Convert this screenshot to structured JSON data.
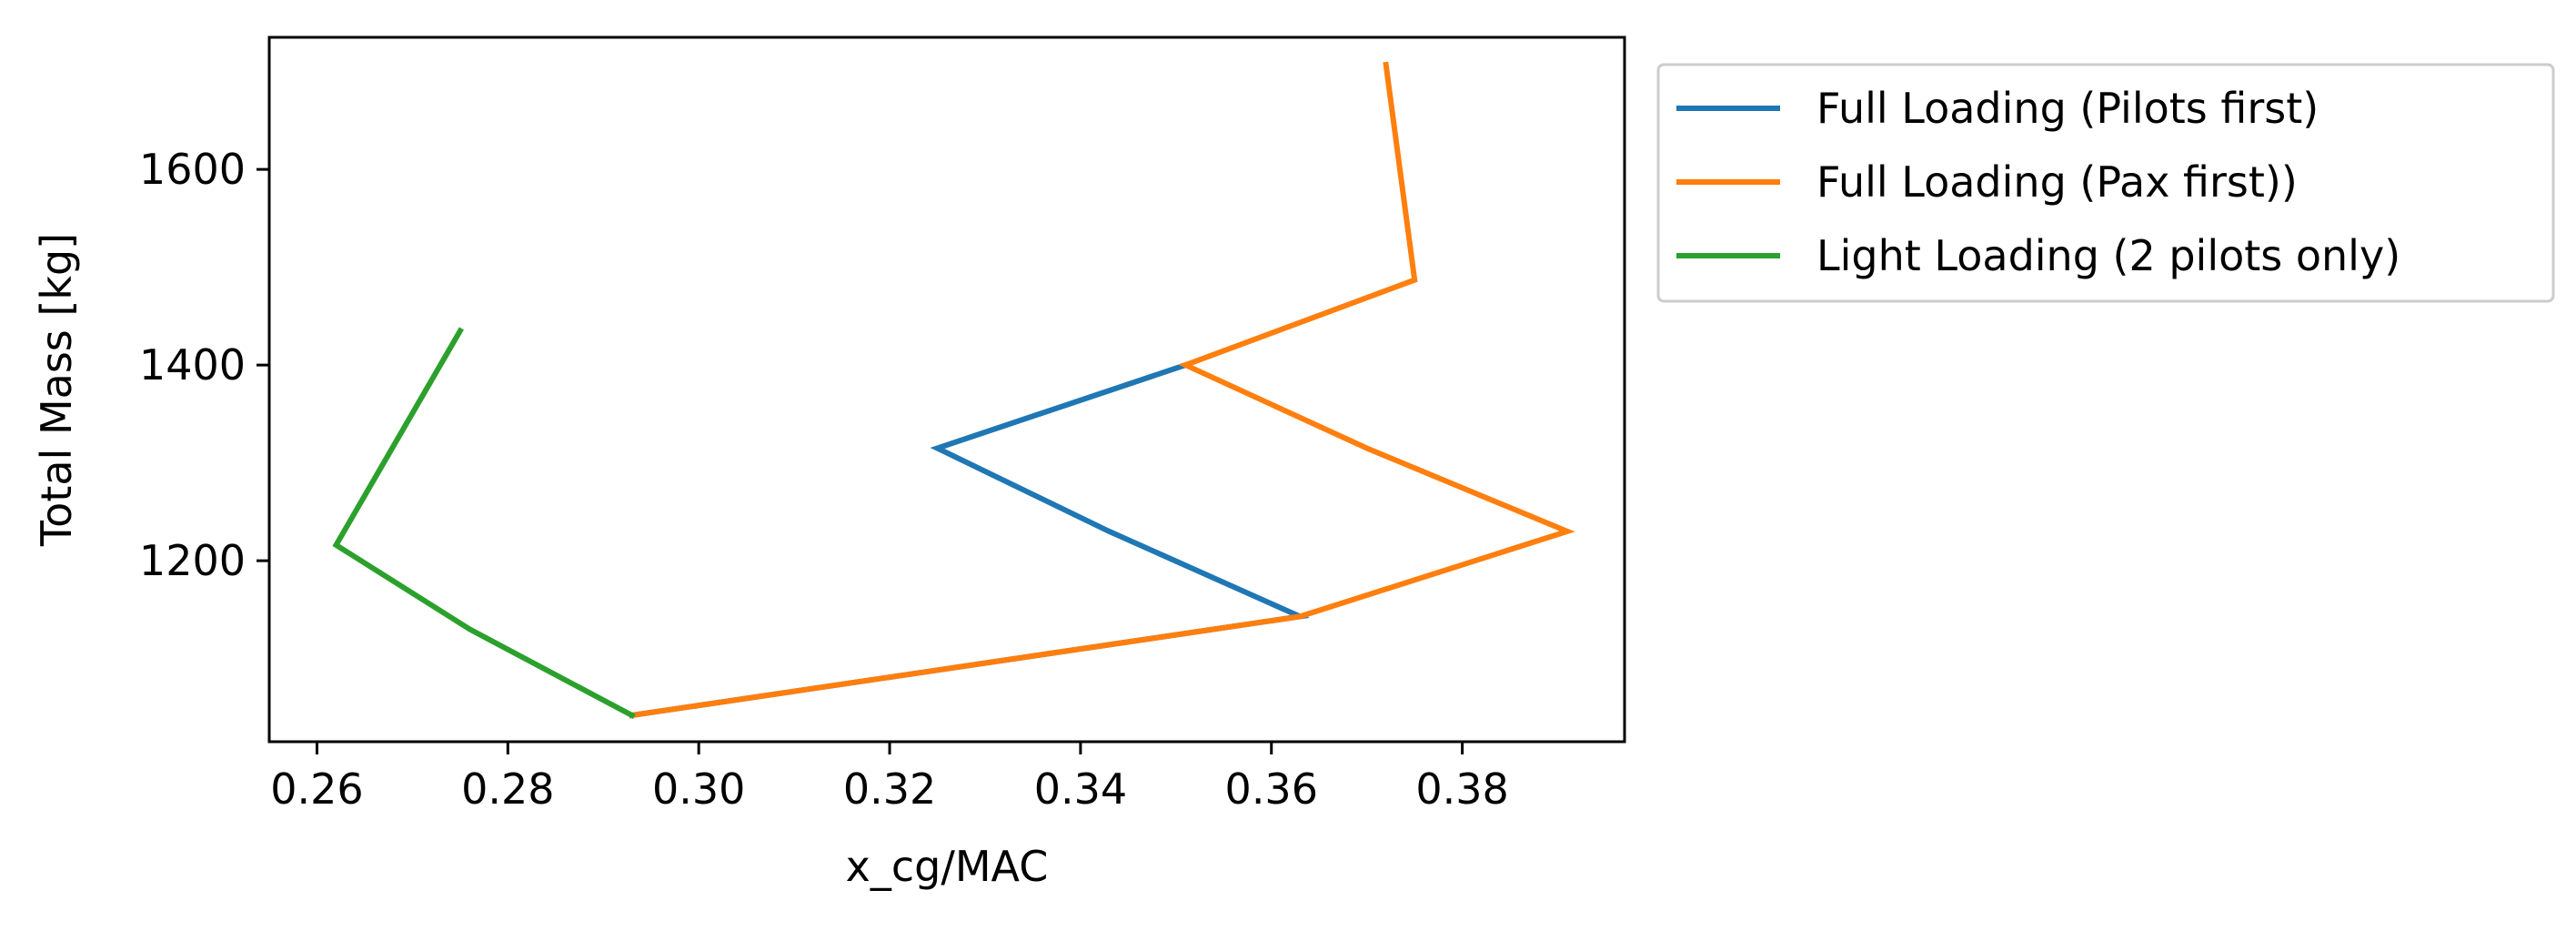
{
  "chart_data": {
    "type": "line",
    "xlabel": "x_cg/MAC",
    "ylabel": "Total Mass [kg]",
    "xlim": [
      0.255,
      0.397
    ],
    "ylim": [
      1015,
      1735
    ],
    "xticks": [
      0.26,
      0.28,
      0.3,
      0.32,
      0.34,
      0.36,
      0.38
    ],
    "xtick_labels": [
      "0.26",
      "0.28",
      "0.30",
      "0.32",
      "0.34",
      "0.36",
      "0.38"
    ],
    "yticks": [
      1200,
      1400,
      1600
    ],
    "ytick_labels": [
      "1200",
      "1400",
      "1600"
    ],
    "grid": false,
    "legend_position": "outside right, top",
    "series": [
      {
        "name": "Full Loading (Pilots first)",
        "color": "#1f77b4",
        "x": [
          0.293,
          0.363,
          0.343,
          0.325,
          0.351
        ],
        "y": [
          1042,
          1143,
          1230,
          1315,
          1400
        ]
      },
      {
        "name": "Full Loading (Pax first))",
        "color": "#ff7f0e",
        "x": [
          0.293,
          0.363,
          0.391,
          0.37,
          0.351,
          0.375,
          0.372
        ],
        "y": [
          1042,
          1143,
          1230,
          1315,
          1400,
          1487,
          1707
        ]
      },
      {
        "name": "Light Loading (2 pilots only)",
        "color": "#2ca02c",
        "x": [
          0.293,
          0.276,
          0.262,
          0.275
        ],
        "y": [
          1042,
          1130,
          1216,
          1435
        ]
      }
    ]
  }
}
